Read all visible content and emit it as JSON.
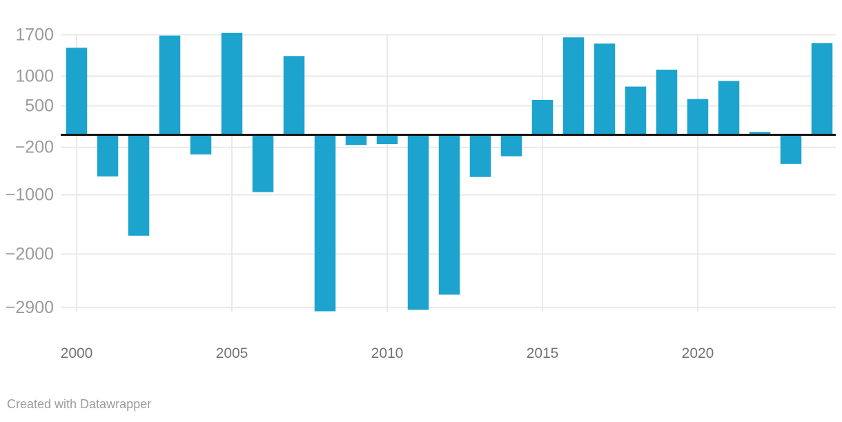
{
  "chart_data": {
    "type": "bar",
    "title": "",
    "categories": [
      2000,
      2001,
      2002,
      2003,
      2004,
      2005,
      2006,
      2007,
      2008,
      2009,
      2010,
      2011,
      2012,
      2013,
      2014,
      2015,
      2016,
      2017,
      2018,
      2019,
      2020,
      2021,
      2022,
      2023,
      2024
    ],
    "values": [
      1480,
      -690,
      -1690,
      1685,
      -320,
      1730,
      -955,
      1340,
      -2965,
      -160,
      -145,
      -2940,
      -2685,
      -700,
      -350,
      600,
      1655,
      1550,
      825,
      1110,
      615,
      920,
      60,
      -480,
      1560
    ],
    "xlabel": "",
    "ylabel": "",
    "ylim": [
      -2965,
      1740
    ],
    "grid": true,
    "legend": "none",
    "y_ticks": [
      {
        "label": "1700",
        "value": 1700
      },
      {
        "label": "1000",
        "value": 1000
      },
      {
        "label": "500",
        "value": 500
      },
      {
        "label": "−200",
        "value": -200
      },
      {
        "label": "−1000",
        "value": -1000
      },
      {
        "label": "−2000",
        "value": -2000
      },
      {
        "label": "−2900",
        "value": -2900
      }
    ],
    "x_ticks": [
      {
        "label": "2000",
        "value": 2000
      },
      {
        "label": "2005",
        "value": 2005
      },
      {
        "label": "2010",
        "value": 2010
      },
      {
        "label": "2015",
        "value": 2015
      },
      {
        "label": "2020",
        "value": 2020
      }
    ],
    "colors": {
      "bar": "#1CA3CE",
      "grid": "#E9E9E9",
      "baseline": "#141414",
      "y_label": "#9B9B9B",
      "x_label": "#737373",
      "footer": "#9C9C9C",
      "background": "#FFFFFF"
    }
  },
  "footer": {
    "text": "Created with Datawrapper"
  }
}
